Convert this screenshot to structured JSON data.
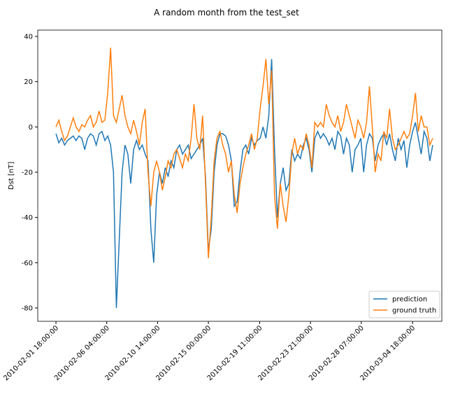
{
  "chart_data": {
    "type": "line",
    "title": "A random month from the test_set",
    "ylabel": "Dst [nT]",
    "x": [
      "2010-02-01 18:00:00",
      "2010-02-02 00:00:00",
      "2010-02-02 06:00:00",
      "2010-02-02 12:00:00",
      "2010-02-02 18:00:00",
      "2010-02-03 00:00:00",
      "2010-02-03 06:00:00",
      "2010-02-03 12:00:00",
      "2010-02-03 18:00:00",
      "2010-02-04 00:00:00",
      "2010-02-04 06:00:00",
      "2010-02-04 12:00:00",
      "2010-02-04 18:00:00",
      "2010-02-05 00:00:00",
      "2010-02-05 06:00:00",
      "2010-02-05 12:00:00",
      "2010-02-05 18:00:00",
      "2010-02-06 00:00:00",
      "2010-02-06 06:00:00",
      "2010-02-06 12:00:00",
      "2010-02-06 18:00:00",
      "2010-02-07 00:00:00",
      "2010-02-07 06:00:00",
      "2010-02-07 12:00:00",
      "2010-02-07 18:00:00",
      "2010-02-08 00:00:00",
      "2010-02-08 06:00:00",
      "2010-02-08 12:00:00",
      "2010-02-08 18:00:00",
      "2010-02-09 00:00:00",
      "2010-02-09 06:00:00",
      "2010-02-09 12:00:00",
      "2010-02-09 18:00:00",
      "2010-02-10 00:00:00",
      "2010-02-10 06:00:00",
      "2010-02-10 12:00:00",
      "2010-02-10 18:00:00",
      "2010-02-11 00:00:00",
      "2010-02-11 06:00:00",
      "2010-02-11 12:00:00",
      "2010-02-11 18:00:00",
      "2010-02-12 00:00:00",
      "2010-02-12 06:00:00",
      "2010-02-12 12:00:00",
      "2010-02-12 18:00:00",
      "2010-02-13 00:00:00",
      "2010-02-13 06:00:00",
      "2010-02-13 12:00:00",
      "2010-02-13 18:00:00",
      "2010-02-14 00:00:00",
      "2010-02-14 06:00:00",
      "2010-02-14 12:00:00",
      "2010-02-14 18:00:00",
      "2010-02-15 00:00:00",
      "2010-02-15 06:00:00",
      "2010-02-15 12:00:00",
      "2010-02-15 18:00:00",
      "2010-02-16 00:00:00",
      "2010-02-16 06:00:00",
      "2010-02-16 12:00:00",
      "2010-02-16 18:00:00",
      "2010-02-17 00:00:00",
      "2010-02-17 06:00:00",
      "2010-02-17 12:00:00",
      "2010-02-17 18:00:00",
      "2010-02-18 00:00:00",
      "2010-02-18 06:00:00",
      "2010-02-18 12:00:00",
      "2010-02-18 18:00:00",
      "2010-02-19 00:00:00",
      "2010-02-19 06:00:00",
      "2010-02-19 12:00:00",
      "2010-02-19 18:00:00",
      "2010-02-20 00:00:00",
      "2010-02-20 06:00:00",
      "2010-02-20 12:00:00",
      "2010-02-20 18:00:00",
      "2010-02-21 00:00:00",
      "2010-02-21 06:00:00",
      "2010-02-21 12:00:00",
      "2010-02-21 18:00:00",
      "2010-02-22 00:00:00",
      "2010-02-22 06:00:00",
      "2010-02-22 12:00:00",
      "2010-02-22 18:00:00",
      "2010-02-23 00:00:00",
      "2010-02-23 06:00:00",
      "2010-02-23 12:00:00",
      "2010-02-23 18:00:00",
      "2010-02-24 00:00:00",
      "2010-02-24 06:00:00",
      "2010-02-24 12:00:00",
      "2010-02-24 18:00:00",
      "2010-02-25 00:00:00",
      "2010-02-25 06:00:00",
      "2010-02-25 12:00:00",
      "2010-02-25 18:00:00",
      "2010-02-26 00:00:00",
      "2010-02-26 06:00:00",
      "2010-02-26 12:00:00",
      "2010-02-26 18:00:00",
      "2010-02-27 00:00:00",
      "2010-02-27 06:00:00",
      "2010-02-27 12:00:00",
      "2010-02-27 18:00:00",
      "2010-02-28 00:00:00",
      "2010-02-28 06:00:00",
      "2010-02-28 12:00:00",
      "2010-02-28 18:00:00",
      "2010-03-01 00:00:00",
      "2010-03-01 06:00:00",
      "2010-03-01 12:00:00",
      "2010-03-01 18:00:00",
      "2010-03-02 00:00:00",
      "2010-03-02 06:00:00",
      "2010-03-02 12:00:00",
      "2010-03-02 18:00:00",
      "2010-03-03 00:00:00",
      "2010-03-03 06:00:00",
      "2010-03-03 12:00:00",
      "2010-03-03 18:00:00",
      "2010-03-04 00:00:00",
      "2010-03-04 06:00:00",
      "2010-03-04 12:00:00",
      "2010-03-04 18:00:00",
      "2010-03-05 00:00:00",
      "2010-03-05 06:00:00",
      "2010-03-05 12:00:00",
      "2010-03-05 18:00:00",
      "2010-03-06 00:00:00",
      "2010-03-06 06:00:00",
      "2010-03-06 12:00:00"
    ],
    "series": [
      {
        "name": "prediction",
        "color": "#1f77b4",
        "values": [
          -3,
          -7,
          -5,
          -8,
          -6,
          -5,
          -4,
          -6,
          -4,
          -5,
          -10,
          -5,
          -3,
          -4,
          -8,
          -3,
          -2,
          -6,
          -4,
          -8,
          -20,
          -80,
          -50,
          -20,
          -8,
          -12,
          -25,
          -10,
          -6,
          -10,
          -8,
          -12,
          -15,
          -45,
          -60,
          -30,
          -20,
          -25,
          -18,
          -22,
          -15,
          -18,
          -10,
          -8,
          -12,
          -10,
          -8,
          -14,
          -12,
          -10,
          -8,
          -5,
          -22,
          -55,
          -45,
          -20,
          -8,
          -3,
          -3,
          -4,
          -8,
          -15,
          -35,
          -33,
          -20,
          -10,
          -8,
          -12,
          -5,
          -8,
          -6,
          -5,
          0,
          -5,
          5,
          30,
          -10,
          -40,
          -25,
          -18,
          -28,
          -25,
          -10,
          -15,
          -12,
          -14,
          -8,
          -5,
          -10,
          -20,
          -5,
          -2,
          -5,
          -3,
          -5,
          -8,
          -5,
          -10,
          -2,
          -4,
          -12,
          -5,
          -8,
          -20,
          -10,
          -8,
          -5,
          -20,
          -8,
          -3,
          -5,
          -15,
          -8,
          -5,
          -3,
          -8,
          -3,
          -10,
          -15,
          -5,
          -10,
          -6,
          -18,
          -8,
          -2,
          2,
          -5,
          -12,
          -2,
          -5,
          -15,
          -8
        ]
      },
      {
        "name": "ground truth",
        "color": "#ff7f0e",
        "values": [
          0,
          3,
          -2,
          -6,
          -4,
          0,
          4,
          0,
          -2,
          1,
          0,
          3,
          5,
          0,
          2,
          7,
          2,
          3,
          15,
          35,
          5,
          2,
          8,
          14,
          5,
          0,
          -3,
          3,
          -2,
          -8,
          2,
          8,
          -20,
          -35,
          -20,
          -15,
          -20,
          -28,
          -22,
          -15,
          -18,
          -12,
          -10,
          -14,
          -18,
          -12,
          -15,
          -5,
          10,
          -5,
          -10,
          5,
          -25,
          -58,
          -40,
          -15,
          -5,
          -2,
          -8,
          -12,
          -20,
          -15,
          -30,
          -38,
          -25,
          -18,
          -12,
          -8,
          -3,
          -10,
          -5,
          8,
          18,
          30,
          10,
          25,
          -30,
          -45,
          -25,
          -35,
          -42,
          -30,
          -12,
          -5,
          -12,
          -8,
          -10,
          -3,
          -8,
          -18,
          2,
          0,
          2,
          0,
          10,
          5,
          2,
          0,
          5,
          -2,
          2,
          10,
          5,
          0,
          -5,
          3,
          0,
          -5,
          2,
          18,
          0,
          -20,
          -12,
          -15,
          -2,
          -5,
          8,
          -5,
          -10,
          -8,
          -5,
          -2,
          -5,
          -3,
          5,
          15,
          -2,
          5,
          0,
          0,
          -8,
          -5
        ]
      }
    ],
    "xlim": [
      "2010-01-31 04:00:00",
      "2010-03-07 07:00:00"
    ],
    "xticks": [
      "2010-02-01 18:00:00",
      "2010-02-06 04:00:00",
      "2010-02-10 14:00:00",
      "2010-02-15 00:00:00",
      "2010-02-19 11:00:00",
      "2010-02-23 21:00:00",
      "2010-02-28 07:00:00",
      "2010-03-04 18:00:00"
    ],
    "ylim": [
      -85.9,
      42.8
    ],
    "yticks": [
      -80,
      -60,
      -40,
      -20,
      0,
      20,
      40
    ],
    "legend": "lower right"
  }
}
